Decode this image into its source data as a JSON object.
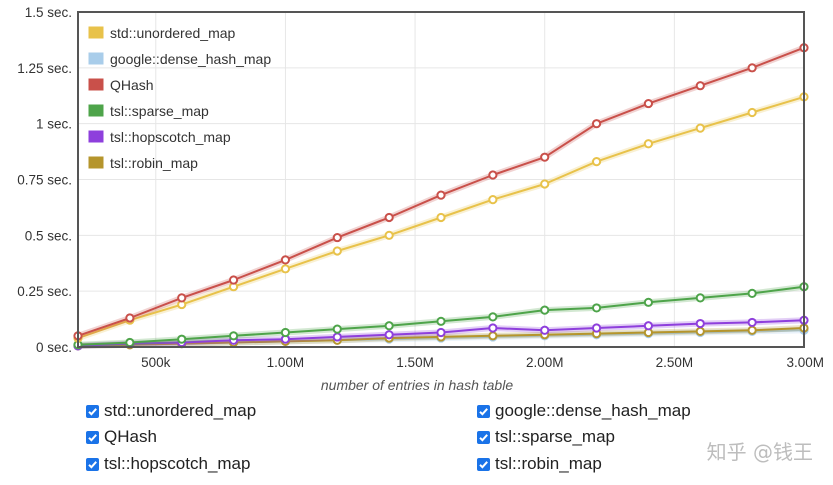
{
  "chart_data": {
    "type": "line",
    "xlabel": "number of entries in hash table",
    "ylabel": "",
    "x": [
      200000,
      400000,
      600000,
      800000,
      1000000,
      1200000,
      1400000,
      1600000,
      1800000,
      2000000,
      2200000,
      2400000,
      2600000,
      2800000,
      3000000
    ],
    "xlim": [
      200000,
      3000000
    ],
    "ylim": [
      0,
      1.5
    ],
    "x_ticks": [
      {
        "value": 500000,
        "label": "500k"
      },
      {
        "value": 1000000,
        "label": "1.00M"
      },
      {
        "value": 1500000,
        "label": "1.50M"
      },
      {
        "value": 2000000,
        "label": "2.00M"
      },
      {
        "value": 2500000,
        "label": "2.50M"
      },
      {
        "value": 3000000,
        "label": "3.00M"
      }
    ],
    "y_ticks": [
      {
        "value": 0,
        "label": "0 sec."
      },
      {
        "value": 0.25,
        "label": "0.25 sec."
      },
      {
        "value": 0.5,
        "label": "0.5 sec."
      },
      {
        "value": 0.75,
        "label": "0.75 sec."
      },
      {
        "value": 1,
        "label": "1 sec."
      },
      {
        "value": 1.25,
        "label": "1.25 sec."
      },
      {
        "value": 1.5,
        "label": "1.5 sec."
      }
    ],
    "grid": true,
    "legend_position": "top-left",
    "series": [
      {
        "name": "std::unordered_map",
        "color": "#e8c24a",
        "values": [
          0.04,
          0.12,
          0.19,
          0.27,
          0.35,
          0.43,
          0.5,
          0.58,
          0.66,
          0.73,
          0.83,
          0.91,
          0.98,
          1.05,
          1.12
        ]
      },
      {
        "name": "google::dense_hash_map",
        "color": "#a9cdea",
        "values": [
          0.005,
          0.01,
          0.015,
          0.02,
          0.025,
          0.03,
          0.035,
          0.04,
          0.045,
          0.05,
          0.055,
          0.06,
          0.065,
          0.07,
          0.075
        ]
      },
      {
        "name": "QHash",
        "color": "#c9504a",
        "values": [
          0.05,
          0.13,
          0.22,
          0.3,
          0.39,
          0.49,
          0.58,
          0.68,
          0.77,
          0.85,
          1.0,
          1.09,
          1.17,
          1.25,
          1.34
        ]
      },
      {
        "name": "tsl::sparse_map",
        "color": "#4ea44a",
        "values": [
          0.01,
          0.02,
          0.035,
          0.05,
          0.065,
          0.08,
          0.095,
          0.115,
          0.135,
          0.165,
          0.175,
          0.2,
          0.22,
          0.24,
          0.27
        ]
      },
      {
        "name": "tsl::hopscotch_map",
        "color": "#8e3fdc",
        "values": [
          0.005,
          0.015,
          0.02,
          0.03,
          0.035,
          0.045,
          0.055,
          0.065,
          0.085,
          0.075,
          0.085,
          0.095,
          0.105,
          0.11,
          0.12
        ]
      },
      {
        "name": "tsl::robin_map",
        "color": "#b5952c",
        "values": [
          0.005,
          0.01,
          0.015,
          0.02,
          0.025,
          0.03,
          0.04,
          0.045,
          0.05,
          0.055,
          0.06,
          0.065,
          0.07,
          0.075,
          0.085
        ]
      }
    ]
  },
  "toggles": [
    {
      "label": "std::unordered_map",
      "checked": true
    },
    {
      "label": "google::dense_hash_map",
      "checked": true
    },
    {
      "label": "QHash",
      "checked": true
    },
    {
      "label": "tsl::sparse_map",
      "checked": true
    },
    {
      "label": "tsl::hopscotch_map",
      "checked": true
    },
    {
      "label": "tsl::robin_map",
      "checked": true
    }
  ],
  "watermark": "知乎 @钱王",
  "colors": {
    "plot_border": "#555555",
    "grid": "#e6e6e6",
    "tick_text": "#333333",
    "checkbox": "#1a73e8"
  }
}
